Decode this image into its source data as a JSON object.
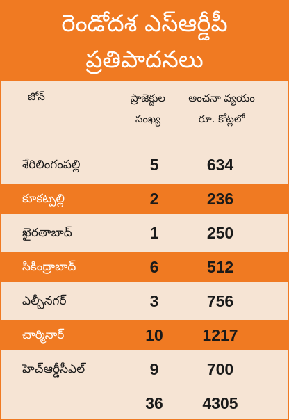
{
  "title_line1": "రెండోదశ ఎస్ఆర్డీపీ",
  "title_line2": "ప్రతిపాదనలు",
  "columns": {
    "zone": "జోన్",
    "count_line1": "ప్రాజెక్టుల",
    "count_line2": "సంఖ్య",
    "cost_line1": "అంచనా వ్యయం",
    "cost_line2": "రూ. కోట్లలో"
  },
  "rows": [
    {
      "zone": "శేరిలింగంపల్లి",
      "count": "5",
      "cost": "634"
    },
    {
      "zone": "కూకట్పల్లి",
      "count": "2",
      "cost": "236"
    },
    {
      "zone": "ఖైరతాబాద్",
      "count": "1",
      "cost": "250"
    },
    {
      "zone": "సికింద్రాబాద్",
      "count": "6",
      "cost": "512"
    },
    {
      "zone": "ఎల్బీనగర్",
      "count": "3",
      "cost": "756"
    },
    {
      "zone": "చార్మినార్",
      "count": "10",
      "cost": "1217"
    },
    {
      "zone": "హెచ్ఆర్డీసీఎల్",
      "count": "9",
      "cost": "700"
    }
  ],
  "total": {
    "count": "36",
    "cost": "4305"
  },
  "colors": {
    "accent": "#f07a22",
    "background": "#f6e4d4"
  }
}
